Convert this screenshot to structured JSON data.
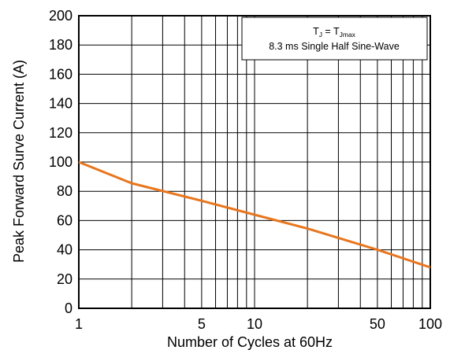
{
  "chart_data": {
    "type": "line",
    "title": "",
    "xlabel": "Number of Cycles at 60Hz",
    "ylabel": "Peak Forward Surve Current (A)",
    "xscale": "log",
    "xlim": [
      1,
      100
    ],
    "ylim": [
      0,
      200
    ],
    "grid": true,
    "x_ticks": [
      1,
      5,
      10,
      50,
      100
    ],
    "x_tick_labels": [
      "1",
      "5",
      "10",
      "50",
      "100"
    ],
    "y_ticks": [
      0,
      20,
      40,
      60,
      80,
      100,
      120,
      140,
      160,
      180,
      200
    ],
    "y_tick_labels": [
      "0",
      "20",
      "40",
      "60",
      "80",
      "100",
      "120",
      "140",
      "160",
      "180",
      "200"
    ],
    "series": [
      {
        "color": "#e8761e",
        "x": [
          1,
          2,
          5,
          10,
          20,
          50,
          100
        ],
        "y": [
          100,
          85.5,
          73.5,
          64,
          54.5,
          40,
          28
        ]
      }
    ],
    "annotation": {
      "line1_prefix": "T",
      "line1_sub1": "J",
      "line1_equals": " = T",
      "line1_sub2": "Jmax",
      "line2": "8.3 ms Single Half Sine-Wave",
      "position": "top-right"
    }
  },
  "colors": {
    "line": "#e8761e",
    "grid": "#000000",
    "background": "#ffffff"
  }
}
